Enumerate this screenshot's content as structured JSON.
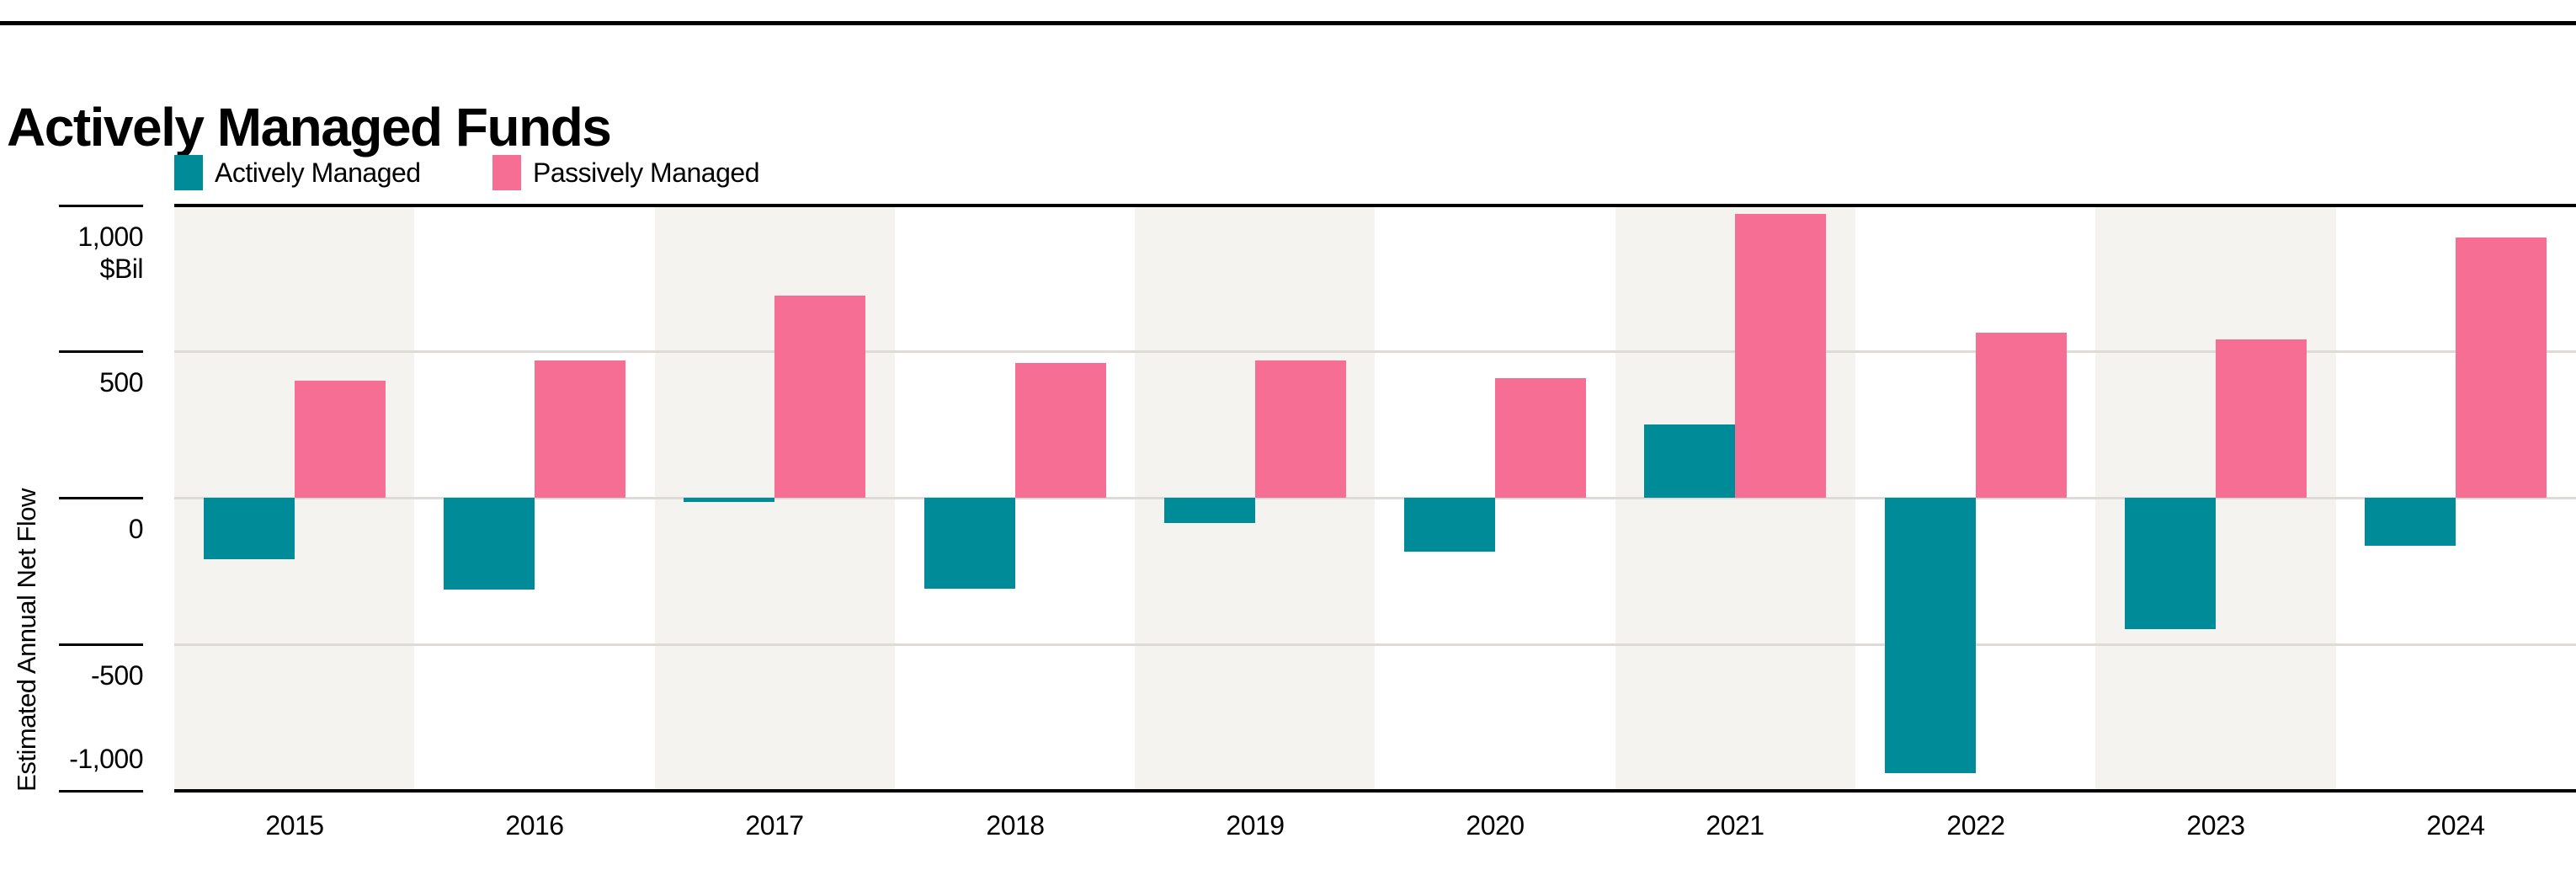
{
  "header": {
    "title": "Actively Managed Funds"
  },
  "legend": {
    "items": [
      {
        "label": "Actively Managed",
        "series": "active"
      },
      {
        "label": "Passively Managed",
        "series": "passive"
      }
    ]
  },
  "colors": {
    "active": "#008B98",
    "passive": "#F76E94",
    "band": "#F5F3EF",
    "gridline": "#DEDAD6",
    "rule": "#000000",
    "text": "#000000"
  },
  "y_axis": {
    "title": "Estimated Annual Net Flow",
    "unit": "$Bil",
    "tick_labels": [
      "1,000",
      "500",
      "0",
      "-500",
      "-1,000"
    ],
    "tick_values": [
      1000,
      500,
      0,
      -500,
      -1000
    ]
  },
  "x_axis": {
    "tick_labels": [
      "2015",
      "2016",
      "2017",
      "2018",
      "2019",
      "2020",
      "2021",
      "2022",
      "2023",
      "2024"
    ]
  },
  "chart_data": {
    "type": "bar",
    "title": "Actively Managed Funds",
    "categories": [
      "2015",
      "2016",
      "2017",
      "2018",
      "2019",
      "2020",
      "2021",
      "2022",
      "2023",
      "2024"
    ],
    "series": [
      {
        "name": "Actively Managed",
        "color": "#008B98",
        "values": [
          -210,
          -315,
          -15,
          -310,
          -85,
          -185,
          250,
          -940,
          -450,
          -165
        ]
      },
      {
        "name": "Passively Managed",
        "color": "#F76E94",
        "values": [
          400,
          470,
          690,
          460,
          470,
          410,
          970,
          565,
          540,
          890
        ]
      }
    ],
    "xlabel": "",
    "ylabel": "Estimated Annual Net Flow",
    "y_unit": "$Bil",
    "ylim": [
      -1000,
      1000
    ],
    "ytick_interval": 500,
    "grid": "horizontal",
    "legend_position": "top-left",
    "background_bands": "alternating year columns shaded, odd years (2015,2017,2019,2021,2023)"
  }
}
